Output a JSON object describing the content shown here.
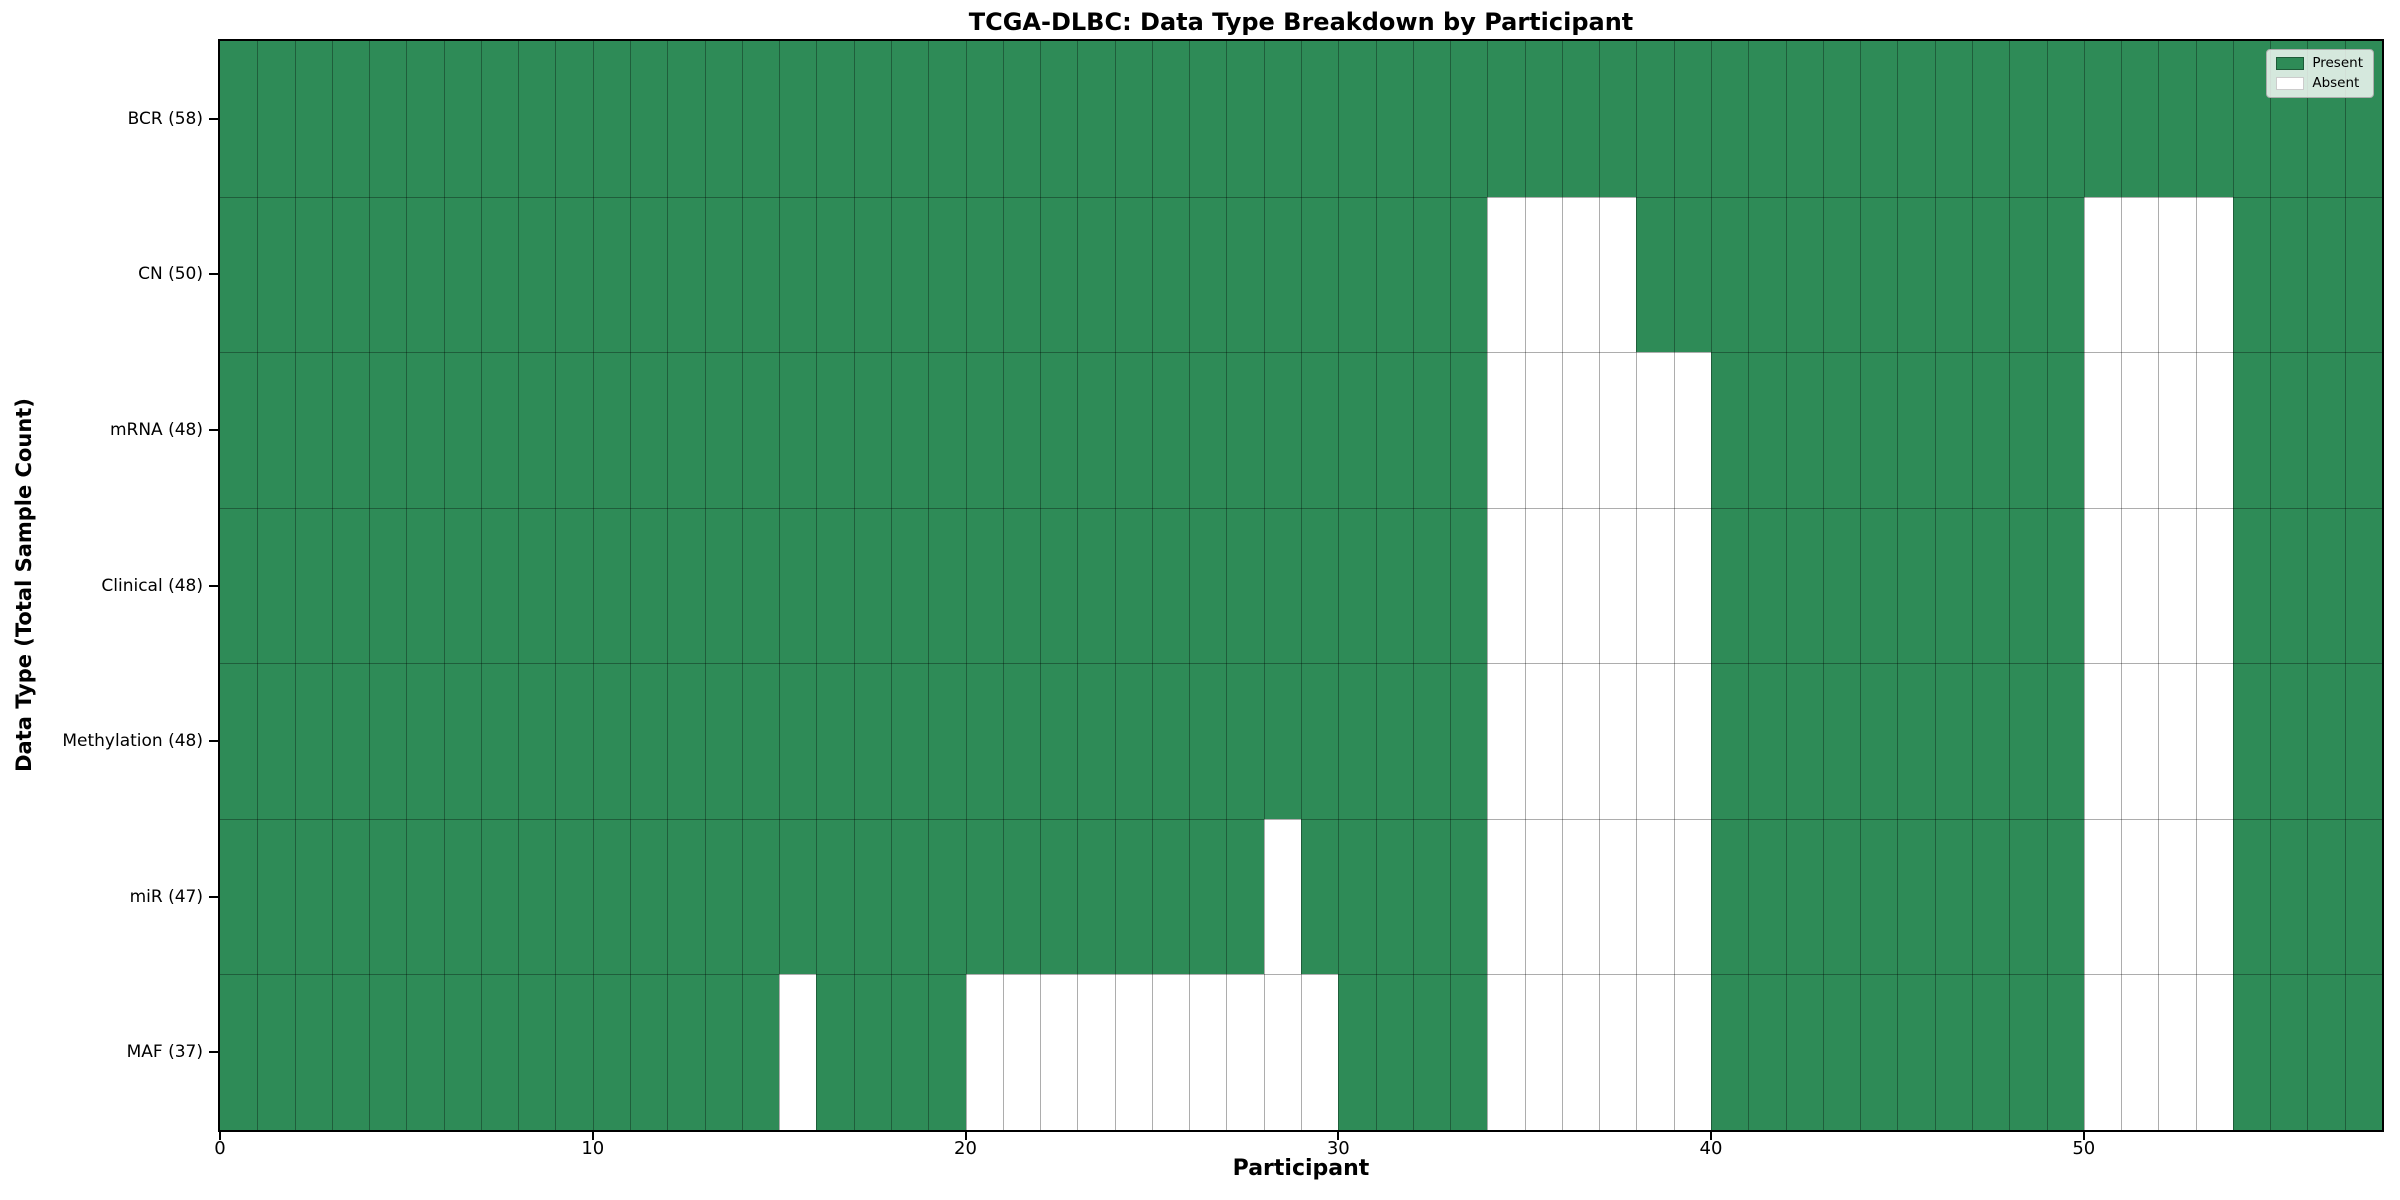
{
  "chart_data": {
    "type": "heatmap",
    "title": "TCGA-DLBC: Data Type Breakdown by Participant",
    "xlabel": "Participant",
    "ylabel": "Data Type (Total Sample Count)",
    "x_ticks": [
      0,
      10,
      20,
      30,
      40,
      50
    ],
    "x_range": [
      0,
      58
    ],
    "n_participants": 58,
    "grid": true,
    "categories": [
      "BCR (58)",
      "CN (50)",
      "mRNA (48)",
      "Clinical (48)",
      "Methylation (48)",
      "miR (47)",
      "MAF (37)"
    ],
    "series": [
      {
        "name": "BCR",
        "total_samples": 58,
        "absent_participants": []
      },
      {
        "name": "CN",
        "total_samples": 50,
        "absent_participants": [
          34,
          35,
          36,
          37,
          50,
          51,
          52,
          53
        ]
      },
      {
        "name": "mRNA",
        "total_samples": 48,
        "absent_participants": [
          34,
          35,
          36,
          37,
          38,
          39,
          50,
          51,
          52,
          53
        ]
      },
      {
        "name": "Clinical",
        "total_samples": 48,
        "absent_participants": [
          34,
          35,
          36,
          37,
          38,
          39,
          50,
          51,
          52,
          53
        ]
      },
      {
        "name": "Methylation",
        "total_samples": 48,
        "absent_participants": [
          34,
          35,
          36,
          37,
          38,
          39,
          50,
          51,
          52,
          53
        ]
      },
      {
        "name": "miR",
        "total_samples": 47,
        "absent_participants": [
          28,
          34,
          35,
          36,
          37,
          38,
          39,
          50,
          51,
          52,
          53
        ]
      },
      {
        "name": "MAF",
        "total_samples": 37,
        "absent_participants": [
          15,
          20,
          21,
          22,
          23,
          24,
          25,
          26,
          27,
          28,
          29,
          34,
          35,
          36,
          37,
          38,
          39,
          50,
          51,
          52,
          53
        ]
      }
    ],
    "colors": {
      "present": "#2e8b57",
      "absent": "#ffffff"
    },
    "legend": {
      "position": "upper right",
      "entries": [
        {
          "label": "Present",
          "color": "#2e8b57"
        },
        {
          "label": "Absent",
          "color": "#ffffff"
        }
      ]
    }
  }
}
